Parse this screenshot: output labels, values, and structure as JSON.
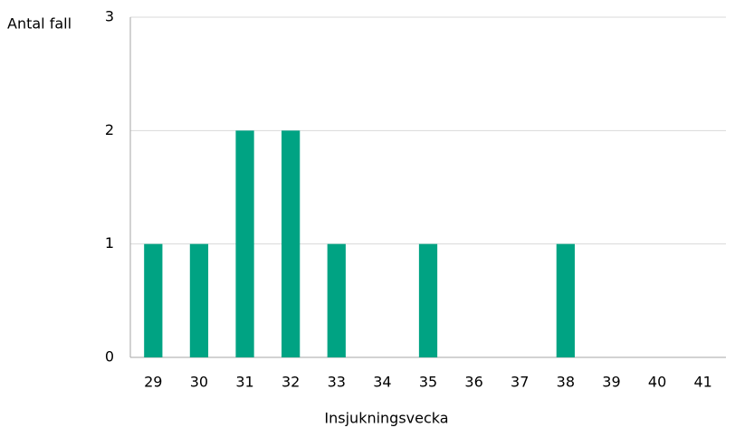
{
  "chart_data": {
    "type": "bar",
    "ylabel": "Antal fall",
    "xlabel": "Insjukningsvecka",
    "categories": [
      "29",
      "30",
      "31",
      "32",
      "33",
      "34",
      "35",
      "36",
      "37",
      "38",
      "39",
      "40",
      "41"
    ],
    "values": [
      1,
      1,
      2,
      2,
      1,
      0,
      1,
      0,
      0,
      1,
      0,
      0,
      0
    ],
    "color": "#00a383",
    "ylim": [
      0,
      3
    ],
    "yticks": [
      0,
      1,
      2,
      3
    ],
    "grid": true
  }
}
